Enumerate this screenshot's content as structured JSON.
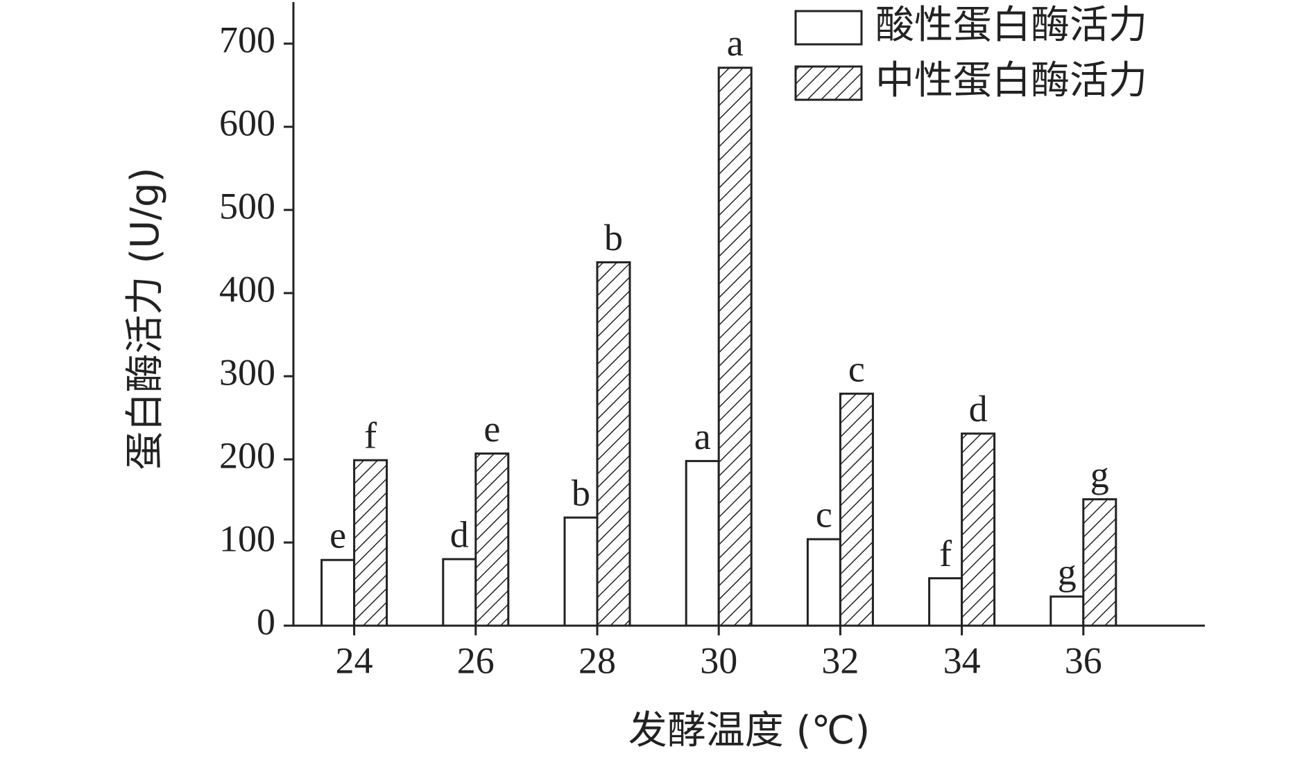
{
  "chart_data": {
    "type": "bar",
    "x_label": "发酵温度 (℃)",
    "y_label": "蛋白酶活力 (U/g)",
    "x": [
      24,
      26,
      28,
      30,
      32,
      34,
      36
    ],
    "xlim": [
      23,
      38
    ],
    "xticks": [
      24,
      26,
      28,
      30,
      32,
      34,
      36
    ],
    "ylim": [
      0,
      750
    ],
    "yticks": [
      0,
      100,
      200,
      300,
      400,
      500,
      600,
      700
    ],
    "legend": "upper right",
    "series": [
      {
        "name": "酸性蛋白酶活力",
        "color": "#ffffff",
        "pattern": "none",
        "values": [
          79,
          80,
          130,
          198,
          104,
          57,
          35
        ],
        "letters": [
          "e",
          "d",
          "b",
          "a",
          "c",
          "f",
          "g"
        ]
      },
      {
        "name": "中性蛋白酶活力",
        "color": "#ffffff",
        "pattern": "hatch",
        "values": [
          199,
          207,
          437,
          671,
          279,
          231,
          152
        ],
        "letters": [
          "f",
          "e",
          "b",
          "a",
          "c",
          "d",
          "g"
        ]
      }
    ]
  }
}
